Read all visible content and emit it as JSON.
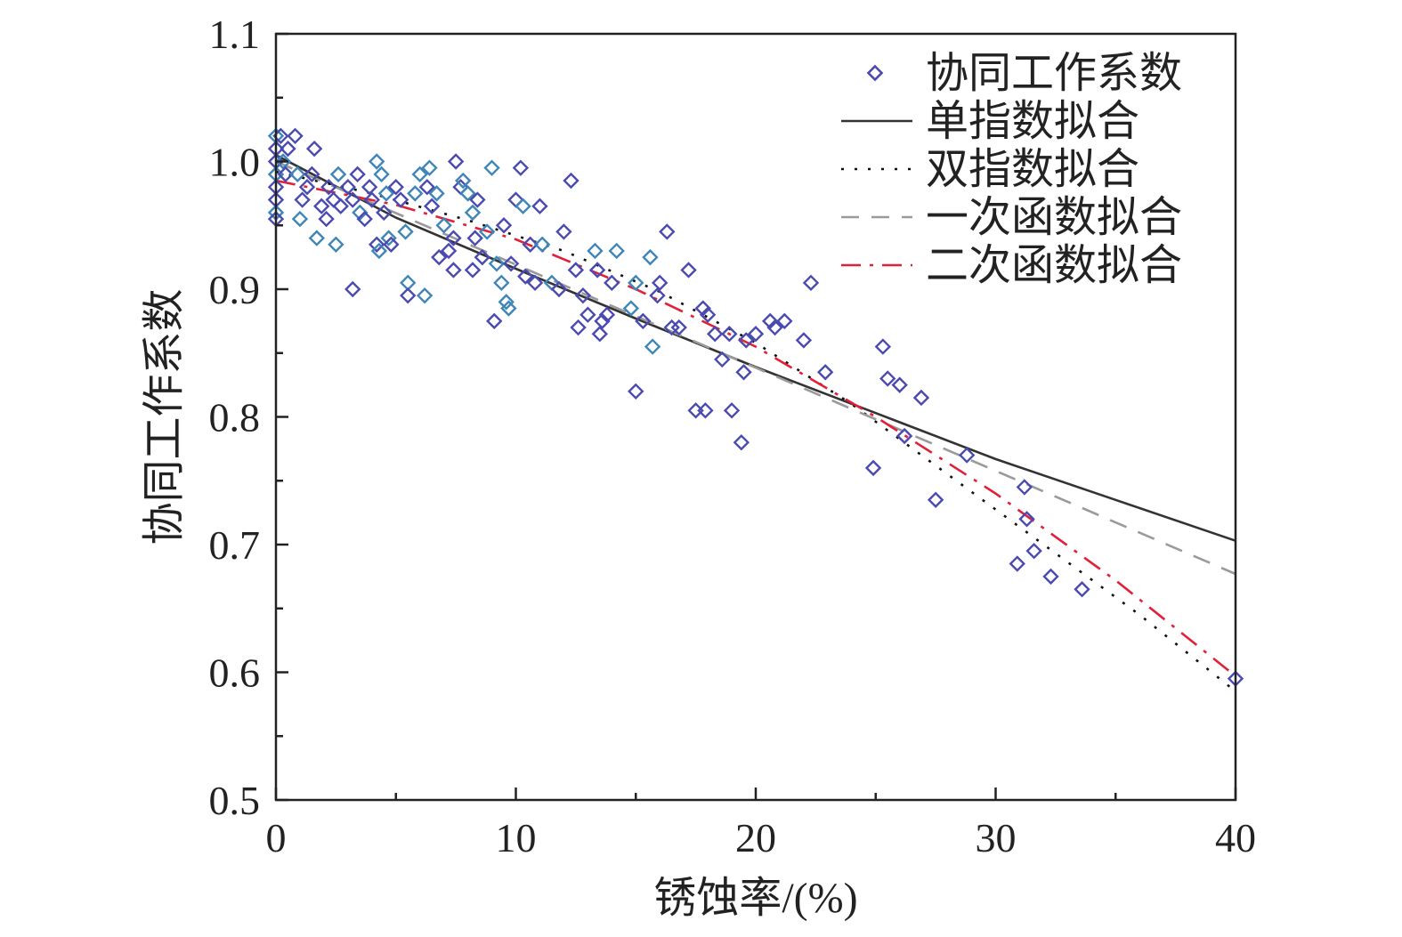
{
  "chart_data": {
    "type": "scatter",
    "xlabel": "锈蚀率/(%)",
    "ylabel": "协同工作系数",
    "xlim": [
      0,
      40
    ],
    "ylim": [
      0.5,
      1.1
    ],
    "xticks": [
      0,
      10,
      20,
      30,
      40
    ],
    "yticks": [
      0.5,
      0.6,
      0.7,
      0.8,
      0.9,
      1.0,
      1.1
    ],
    "xtick_labels": [
      "0",
      "10",
      "20",
      "30",
      "40"
    ],
    "ytick_labels": [
      "0.5",
      "0.6",
      "0.7",
      "0.8",
      "0.9",
      "1.0",
      "1.1"
    ],
    "grid": false,
    "legend_position": "top-right",
    "colors": {
      "points": "#4a4ab0",
      "single_exp": "#333333",
      "double_exp": "#111111",
      "linear": "#9a9a9a",
      "quadratic": "#e0213a"
    },
    "series": [
      {
        "name": "协同工作系数",
        "kind": "scatter",
        "marker": "diamond",
        "points": [
          [
            0,
            1.02
          ],
          [
            0,
            1.01
          ],
          [
            0,
            1.0
          ],
          [
            0,
            0.99
          ],
          [
            0,
            0.98
          ],
          [
            0,
            0.97
          ],
          [
            0,
            0.96
          ],
          [
            0,
            0.955
          ],
          [
            0.2,
            1.02
          ],
          [
            0.3,
            1.0
          ],
          [
            0.4,
            0.99
          ],
          [
            0.5,
            1.01
          ],
          [
            0.8,
            1.02
          ],
          [
            0.9,
            0.99
          ],
          [
            1.0,
            0.955
          ],
          [
            1.1,
            0.97
          ],
          [
            1.3,
            0.98
          ],
          [
            1.5,
            0.99
          ],
          [
            1.6,
            1.01
          ],
          [
            1.7,
            0.94
          ],
          [
            1.9,
            0.965
          ],
          [
            2.1,
            0.955
          ],
          [
            2.2,
            0.98
          ],
          [
            2.4,
            0.97
          ],
          [
            2.5,
            0.935
          ],
          [
            2.6,
            0.99
          ],
          [
            2.7,
            0.965
          ],
          [
            3.0,
            0.98
          ],
          [
            3.2,
            0.97
          ],
          [
            3.2,
            0.9
          ],
          [
            3.4,
            0.99
          ],
          [
            3.5,
            0.96
          ],
          [
            3.7,
            0.955
          ],
          [
            3.9,
            0.98
          ],
          [
            4.0,
            0.97
          ],
          [
            4.2,
            1.0
          ],
          [
            4.2,
            0.935
          ],
          [
            4.3,
            0.93
          ],
          [
            4.4,
            0.99
          ],
          [
            4.5,
            0.96
          ],
          [
            4.6,
            0.975
          ],
          [
            4.7,
            0.94
          ],
          [
            4.8,
            0.935
          ],
          [
            5.0,
            0.98
          ],
          [
            5.2,
            0.97
          ],
          [
            5.4,
            0.945
          ],
          [
            5.5,
            0.905
          ],
          [
            5.5,
            0.895
          ],
          [
            5.8,
            0.975
          ],
          [
            6.0,
            0.99
          ],
          [
            6.2,
            0.895
          ],
          [
            6.3,
            0.98
          ],
          [
            6.4,
            0.995
          ],
          [
            6.5,
            0.965
          ],
          [
            6.7,
            0.975
          ],
          [
            6.8,
            0.925
          ],
          [
            7.0,
            0.95
          ],
          [
            7.2,
            0.93
          ],
          [
            7.4,
            0.915
          ],
          [
            7.4,
            0.94
          ],
          [
            7.5,
            1.0
          ],
          [
            7.7,
            0.98
          ],
          [
            7.8,
            0.985
          ],
          [
            8.0,
            0.975
          ],
          [
            8.2,
            0.96
          ],
          [
            8.2,
            0.915
          ],
          [
            8.3,
            0.94
          ],
          [
            8.4,
            0.97
          ],
          [
            8.6,
            0.925
          ],
          [
            8.8,
            0.945
          ],
          [
            9.0,
            0.995
          ],
          [
            9.1,
            0.875
          ],
          [
            9.2,
            0.92
          ],
          [
            9.4,
            0.905
          ],
          [
            9.5,
            0.95
          ],
          [
            9.6,
            0.89
          ],
          [
            9.7,
            0.885
          ],
          [
            9.8,
            0.92
          ],
          [
            10.0,
            0.97
          ],
          [
            10.2,
            0.995
          ],
          [
            10.3,
            0.965
          ],
          [
            10.4,
            0.91
          ],
          [
            10.6,
            0.935
          ],
          [
            10.8,
            0.905
          ],
          [
            11.0,
            0.965
          ],
          [
            11.1,
            0.935
          ],
          [
            11.5,
            0.905
          ],
          [
            11.8,
            0.9
          ],
          [
            12.0,
            0.945
          ],
          [
            12.3,
            0.985
          ],
          [
            12.5,
            0.915
          ],
          [
            12.6,
            0.87
          ],
          [
            12.8,
            0.895
          ],
          [
            13.0,
            0.88
          ],
          [
            13.3,
            0.93
          ],
          [
            13.4,
            0.915
          ],
          [
            13.5,
            0.865
          ],
          [
            13.6,
            0.875
          ],
          [
            13.8,
            0.88
          ],
          [
            14.0,
            0.905
          ],
          [
            14.2,
            0.93
          ],
          [
            14.8,
            0.885
          ],
          [
            15.0,
            0.905
          ],
          [
            15.0,
            0.82
          ],
          [
            15.3,
            0.875
          ],
          [
            15.6,
            0.925
          ],
          [
            15.7,
            0.855
          ],
          [
            15.9,
            0.895
          ],
          [
            16.0,
            0.905
          ],
          [
            16.3,
            0.945
          ],
          [
            16.5,
            0.87
          ],
          [
            16.8,
            0.87
          ],
          [
            17.2,
            0.915
          ],
          [
            17.5,
            0.805
          ],
          [
            17.8,
            0.885
          ],
          [
            17.9,
            0.805
          ],
          [
            18.0,
            0.88
          ],
          [
            18.3,
            0.865
          ],
          [
            18.6,
            0.845
          ],
          [
            18.9,
            0.865
          ],
          [
            19.0,
            0.805
          ],
          [
            19.4,
            0.78
          ],
          [
            19.5,
            0.835
          ],
          [
            19.6,
            0.86
          ],
          [
            20.0,
            0.865
          ],
          [
            20.6,
            0.875
          ],
          [
            20.8,
            0.87
          ],
          [
            21.2,
            0.875
          ],
          [
            22.0,
            0.86
          ],
          [
            22.3,
            0.905
          ],
          [
            22.9,
            0.835
          ],
          [
            24.9,
            0.76
          ],
          [
            25.3,
            0.855
          ],
          [
            25.5,
            0.83
          ],
          [
            26.0,
            0.825
          ],
          [
            26.2,
            0.785
          ],
          [
            26.9,
            0.815
          ],
          [
            27.5,
            0.735
          ],
          [
            28.8,
            0.77
          ],
          [
            30.9,
            0.685
          ],
          [
            31.2,
            0.745
          ],
          [
            31.3,
            0.72
          ],
          [
            31.6,
            0.695
          ],
          [
            32.3,
            0.675
          ],
          [
            33.6,
            0.665
          ],
          [
            40.0,
            0.595
          ]
        ]
      },
      {
        "name": "单指数拟合",
        "kind": "line",
        "dash": "solid",
        "x": [
          0,
          5,
          10,
          15,
          20,
          25,
          30,
          35,
          40
        ],
        "y": [
          1.005,
          0.956,
          0.916,
          0.877,
          0.839,
          0.803,
          0.767,
          0.735,
          0.703
        ]
      },
      {
        "name": "双指数拟合",
        "kind": "line",
        "dash": "dot",
        "x": [
          0,
          4,
          8,
          12,
          16,
          20,
          24,
          28,
          32,
          36,
          40
        ],
        "y": [
          0.992,
          0.975,
          0.954,
          0.93,
          0.898,
          0.858,
          0.81,
          0.755,
          0.7,
          0.645,
          0.585
        ]
      },
      {
        "name": "一次函数拟合",
        "kind": "line",
        "dash": "dash",
        "x": [
          0,
          40
        ],
        "y": [
          1.0,
          0.677
        ]
      },
      {
        "name": "二次函数拟合",
        "kind": "line",
        "dash": "dashdot",
        "x": [
          0,
          5,
          10,
          15,
          20,
          25,
          30,
          35,
          40
        ],
        "y": [
          0.985,
          0.966,
          0.939,
          0.9,
          0.855,
          0.8,
          0.74,
          0.672,
          0.597
        ]
      }
    ]
  }
}
